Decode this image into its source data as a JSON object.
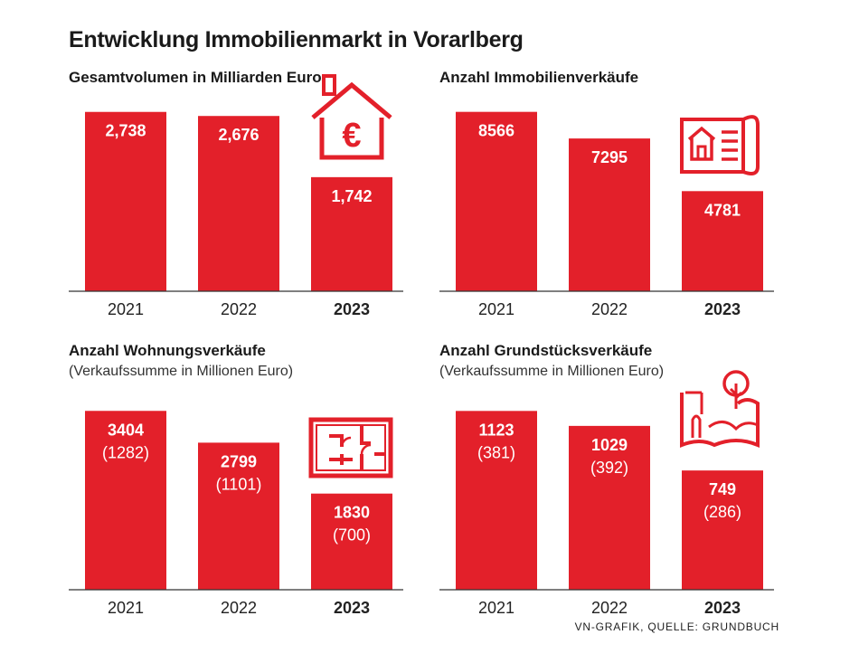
{
  "title": "Entwicklung Immobilienmarkt in Vorarlberg",
  "source": "VN-GRAFIK, QUELLE: GRUNDBUCH",
  "colors": {
    "bar": "#e3202a",
    "text": "#1a1a1a"
  },
  "chart_data": [
    {
      "type": "bar",
      "title": "Gesamtvolumen in Milliarden Euro",
      "subtitle": "",
      "icon": "house-euro-icon",
      "categories": [
        "2021",
        "2022",
        "2023"
      ],
      "values": [
        2.738,
        2.676,
        1.742
      ],
      "value_labels": [
        "2,738",
        "2,676",
        "1,742"
      ],
      "secondary_labels": [],
      "ylim": [
        0,
        2.9
      ]
    },
    {
      "type": "bar",
      "title": "Anzahl Immobilienverkäufe",
      "subtitle": "",
      "icon": "house-document-icon",
      "categories": [
        "2021",
        "2022",
        "2023"
      ],
      "values": [
        8566,
        7295,
        4781
      ],
      "value_labels": [
        "8566",
        "7295",
        "4781"
      ],
      "secondary_labels": [],
      "ylim": [
        0,
        9070
      ]
    },
    {
      "type": "bar",
      "title": "Anzahl Wohnungsverkäufe",
      "subtitle": "(Verkaufssumme in Millionen Euro)",
      "icon": "floor-plan-icon",
      "categories": [
        "2021",
        "2022",
        "2023"
      ],
      "values": [
        3404,
        2799,
        1830
      ],
      "value_labels": [
        "3404",
        "2799",
        "1830"
      ],
      "secondary_labels": [
        "(1282)",
        "(1101)",
        "(700)"
      ],
      "ylim": [
        0,
        3615
      ]
    },
    {
      "type": "bar",
      "title": "Anzahl Grundstücksverkäufe",
      "subtitle": "(Verkaufssumme in Millionen Euro)",
      "icon": "land-plot-icon",
      "categories": [
        "2021",
        "2022",
        "2023"
      ],
      "values": [
        1123,
        1029,
        749
      ],
      "value_labels": [
        "1123",
        "1029",
        "749"
      ],
      "secondary_labels": [
        "(381)",
        "(392)",
        "(286)"
      ],
      "ylim": [
        0,
        1193
      ]
    }
  ]
}
